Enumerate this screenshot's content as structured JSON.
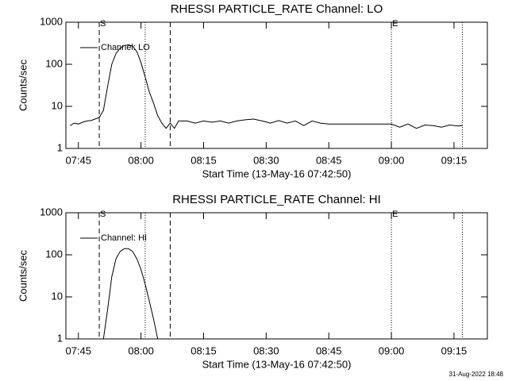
{
  "chart_data": [
    {
      "type": "line",
      "title": "RHESSI PARTICLE_RATE Channel: LO",
      "xlabel": "Start Time (13-May-16 07:42:50)",
      "ylabel": "Counts/sec",
      "log_y": true,
      "ylim": [
        1,
        1000
      ],
      "yticks": [
        1,
        10,
        100,
        1000
      ],
      "xlim": [
        "07:42",
        "09:23"
      ],
      "xticks": [
        "07:45",
        "08:00",
        "08:15",
        "08:30",
        "08:45",
        "09:00",
        "09:15"
      ],
      "legend": "top-left",
      "annotations": [
        {
          "x": "07:50",
          "label": "S",
          "style": "dashed"
        },
        {
          "x": "08:01",
          "style": "dotted"
        },
        {
          "x": "08:07",
          "style": "dashed"
        },
        {
          "x": "09:00",
          "label": "E",
          "style": "dotted"
        },
        {
          "x": "09:17",
          "style": "dotted"
        }
      ],
      "x": [
        "07:43",
        "07:44",
        "07:45",
        "07:46",
        "07:47",
        "07:48",
        "07:49",
        "07:50",
        "07:51",
        "07:52",
        "07:53",
        "07:54",
        "07:55",
        "07:56",
        "07:57",
        "07:58",
        "07:59",
        "08:00",
        "08:01",
        "08:02",
        "08:03",
        "08:04",
        "08:05",
        "08:06",
        "08:07",
        "08:08",
        "08:09",
        "08:11",
        "08:13",
        "08:15",
        "08:17",
        "08:19",
        "08:21",
        "08:23",
        "08:25",
        "08:27",
        "08:29",
        "08:31",
        "08:33",
        "08:35",
        "08:37",
        "08:39",
        "08:41",
        "08:43",
        "08:45",
        "08:50",
        "08:55",
        "08:58",
        "09:00",
        "09:02",
        "09:04",
        "09:06",
        "09:08",
        "09:10",
        "09:12",
        "09:14",
        "09:16",
        "09:17"
      ],
      "series": [
        {
          "name": "Channel: LO",
          "color": "#000000",
          "values": [
            3.5,
            4,
            3.8,
            4.2,
            4.5,
            4.6,
            5,
            5.5,
            8,
            30,
            100,
            180,
            240,
            280,
            290,
            270,
            200,
            110,
            50,
            22,
            12,
            6,
            4,
            3,
            4,
            3,
            4.5,
            4.5,
            4,
            4.5,
            4.2,
            4.5,
            4,
            4.5,
            4.8,
            5,
            4.5,
            4,
            4.6,
            4,
            4.5,
            3.5,
            4.5,
            4,
            3.8,
            3.8,
            3.8,
            3.8,
            3.8,
            3.2,
            3.8,
            3,
            3.6,
            3.5,
            3.2,
            3.6,
            3.4,
            3.5
          ]
        }
      ]
    },
    {
      "type": "line",
      "title": "RHESSI PARTICLE_RATE Channel: HI",
      "xlabel": "Start Time (13-May-16 07:42:50)",
      "ylabel": "Counts/sec",
      "log_y": true,
      "ylim": [
        1,
        1000
      ],
      "yticks": [
        1,
        10,
        100,
        1000
      ],
      "xlim": [
        "07:42",
        "09:23"
      ],
      "xticks": [
        "07:45",
        "08:00",
        "08:15",
        "08:30",
        "08:45",
        "09:00",
        "09:15"
      ],
      "legend": "top-left",
      "annotations": [
        {
          "x": "07:50",
          "label": "S",
          "style": "dashed"
        },
        {
          "x": "08:01",
          "style": "dotted"
        },
        {
          "x": "08:07",
          "style": "dashed"
        },
        {
          "x": "09:00",
          "label": "E",
          "style": "dotted"
        },
        {
          "x": "09:17",
          "style": "dotted"
        }
      ],
      "x": [
        "07:51",
        "07:52",
        "07:53",
        "07:54",
        "07:55",
        "07:56",
        "07:57",
        "07:58",
        "07:59",
        "08:00",
        "08:01",
        "08:02",
        "08:03",
        "08:04"
      ],
      "series": [
        {
          "name": "Channel: HI",
          "color": "#000000",
          "values": [
            1,
            5,
            30,
            80,
            120,
            140,
            140,
            120,
            80,
            45,
            20,
            8,
            3,
            1
          ]
        }
      ]
    }
  ],
  "footer": "31-Aug-2022 18:48"
}
